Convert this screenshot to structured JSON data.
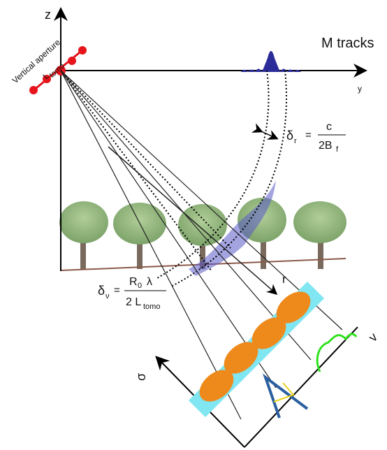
{
  "axes": {
    "z": "z",
    "y": "y",
    "r": "r",
    "sigma": "σ",
    "v": "v"
  },
  "labels": {
    "tracks": "M tracks",
    "aperture": "Vertical aperture",
    "L": "L",
    "L_sub": "tomo"
  },
  "delta_r": {
    "symbol": "δ",
    "sub": "r",
    "equals": "=",
    "numerator": "c",
    "denominator": "2B",
    "denominator_sub": "f"
  },
  "delta_v": {
    "symbol": "δ",
    "sub": "ν",
    "equals": "=",
    "numerator": "R",
    "numerator_sub": "0",
    "numerator_rest": "λ",
    "denominator": "2 L",
    "denominator_sub": "tomo"
  }
}
